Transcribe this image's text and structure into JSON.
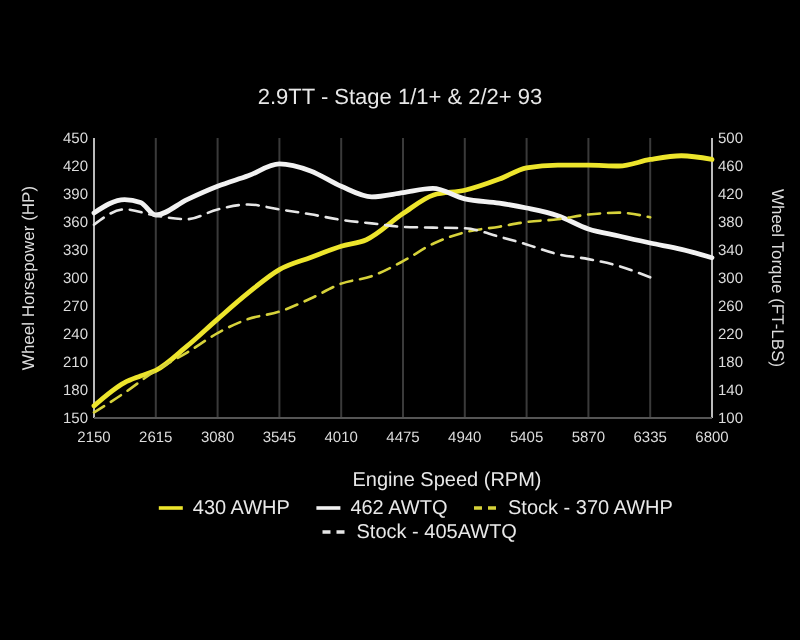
{
  "chart_data": {
    "type": "line",
    "title": "2.9TT - Stage 1/1+ & 2/2+ 93",
    "xlabel": "Engine Speed (RPM)",
    "ylabel": "Wheel Horsepower (HP)",
    "y2label": "Wheel Torque (FT-LBS)",
    "xlim": [
      2150,
      6800
    ],
    "xticks": [
      2150,
      2615,
      3080,
      3545,
      4010,
      4475,
      4940,
      5405,
      5870,
      6335,
      6800
    ],
    "ylim": [
      150,
      450
    ],
    "yticks": [
      150,
      180,
      210,
      240,
      270,
      300,
      330,
      360,
      390,
      420,
      450
    ],
    "y2lim": [
      100,
      500
    ],
    "y2ticks": [
      100,
      140,
      180,
      220,
      260,
      300,
      340,
      380,
      420,
      460,
      500
    ],
    "grid": "x",
    "legend": "bottom",
    "marker": "none",
    "series": [
      {
        "name": "430 AWHP",
        "color": "#ede52c",
        "line_style": "solid",
        "x": [
          2150,
          2380,
          2500,
          2615,
          2850,
          3080,
          3310,
          3545,
          3780,
          4010,
          4200,
          4475,
          4705,
          4940,
          5200,
          5405,
          5640,
          5870,
          6100,
          6335,
          6570,
          6800
        ],
        "values": [
          163,
          188,
          195,
          201,
          227,
          256,
          284,
          309,
          322,
          334,
          341,
          369,
          389,
          394,
          406,
          418,
          421,
          421,
          420,
          427,
          431,
          427
        ]
      },
      {
        "name": "462 AWTQ",
        "color": "#f2f2f2",
        "line_style": "solid",
        "axis": "y2",
        "x": [
          2150,
          2380,
          2500,
          2615,
          2850,
          3080,
          3310,
          3545,
          3780,
          4010,
          4240,
          4475,
          4700,
          4940,
          5200,
          5405,
          5640,
          5870,
          6100,
          6335,
          6570,
          6800
        ],
        "values": [
          393,
          412,
          408,
          390,
          412,
          431,
          446,
          463,
          453,
          431,
          416,
          422,
          428,
          413,
          407,
          400,
          389,
          370,
          360,
          350,
          341,
          329
        ]
      },
      {
        "name": "Stock - 370 AWHP",
        "color": "#d6d23a",
        "line_style": "dashed",
        "x": [
          2150,
          2380,
          2615,
          2850,
          3080,
          3310,
          3545,
          3780,
          4010,
          4240,
          4475,
          4705,
          4940,
          5200,
          5405,
          5640,
          5870,
          6100,
          6335
        ],
        "values": [
          156,
          177,
          201,
          220,
          241,
          256,
          264,
          278,
          294,
          302,
          318,
          337,
          349,
          355,
          360,
          363,
          368,
          370,
          365
        ]
      },
      {
        "name": "Stock - 405AWTQ",
        "color": "#e6e6e6",
        "line_style": "dashed",
        "axis": "y2",
        "x": [
          2150,
          2380,
          2615,
          2850,
          3080,
          3310,
          3545,
          3780,
          4010,
          4240,
          4475,
          4700,
          4940,
          5200,
          5405,
          5640,
          5870,
          6100,
          6335
        ],
        "values": [
          376,
          398,
          389,
          384,
          398,
          405,
          398,
          391,
          383,
          378,
          373,
          372,
          371,
          359,
          348,
          334,
          327,
          317,
          301
        ]
      }
    ]
  }
}
